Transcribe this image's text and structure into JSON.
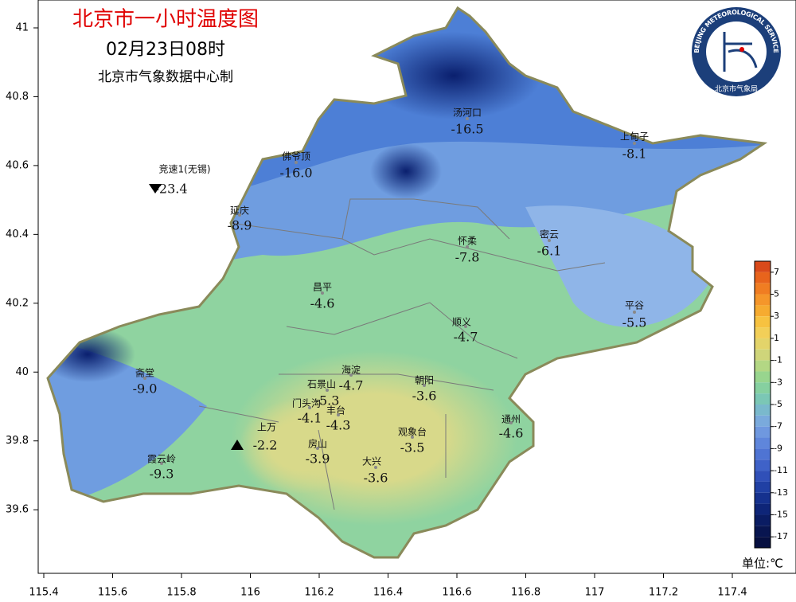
{
  "header": {
    "title": "北京市一小时温度图",
    "time": "02月23日08时",
    "source": "北京市气象数据中心制"
  },
  "logo": {
    "text_en": "BEIJING METEOROLOGICAL SERVICE",
    "text_cn": "北京市气象局"
  },
  "axes": {
    "lon_ticks": [
      "115.4",
      "115.6",
      "115.8",
      "116",
      "116.2",
      "116.4",
      "116.6",
      "116.8",
      "117",
      "117.2",
      "117.4"
    ],
    "lat_ticks": [
      "41",
      "40.8",
      "40.6",
      "40.4",
      "40.2",
      "40",
      "39.8",
      "39.6"
    ]
  },
  "stations": [
    {
      "name": "汤河口",
      "value": "-16.5"
    },
    {
      "name": "上甸子",
      "value": "-8.1"
    },
    {
      "name": "佛爷顶",
      "value": "-16.0"
    },
    {
      "name": "竞速1(无锡)",
      "value": "-23.4"
    },
    {
      "name": "延庆",
      "value": "-8.9"
    },
    {
      "name": "怀柔",
      "value": "-7.8"
    },
    {
      "name": "密云",
      "value": "-6.1"
    },
    {
      "name": "昌平",
      "value": "-4.6"
    },
    {
      "name": "平谷",
      "value": "-5.5"
    },
    {
      "name": "顺义",
      "value": "-4.7"
    },
    {
      "name": "海淀",
      "value": "-4.7"
    },
    {
      "name": "朝阳",
      "value": "-3.6"
    },
    {
      "name": "石景山",
      "value": "-5.3"
    },
    {
      "name": "斋堂",
      "value": "-9.0"
    },
    {
      "name": "门头沟",
      "value": "-4.1"
    },
    {
      "name": "丰台",
      "value": "-4.3"
    },
    {
      "name": "上万",
      "value": "-2.2"
    },
    {
      "name": "观象台",
      "value": "-3.5"
    },
    {
      "name": "通州",
      "value": "-4.6"
    },
    {
      "name": "房山",
      "value": "-3.9"
    },
    {
      "name": "大兴",
      "value": "-3.6"
    },
    {
      "name": "霞云岭",
      "value": "-9.3"
    }
  ],
  "legend": {
    "ticks": [
      "7",
      "5",
      "3",
      "1",
      "-1",
      "-3",
      "-5",
      "-7",
      "-9",
      "-11",
      "-13",
      "-15",
      "-17"
    ],
    "unit": "单位:℃"
  }
}
